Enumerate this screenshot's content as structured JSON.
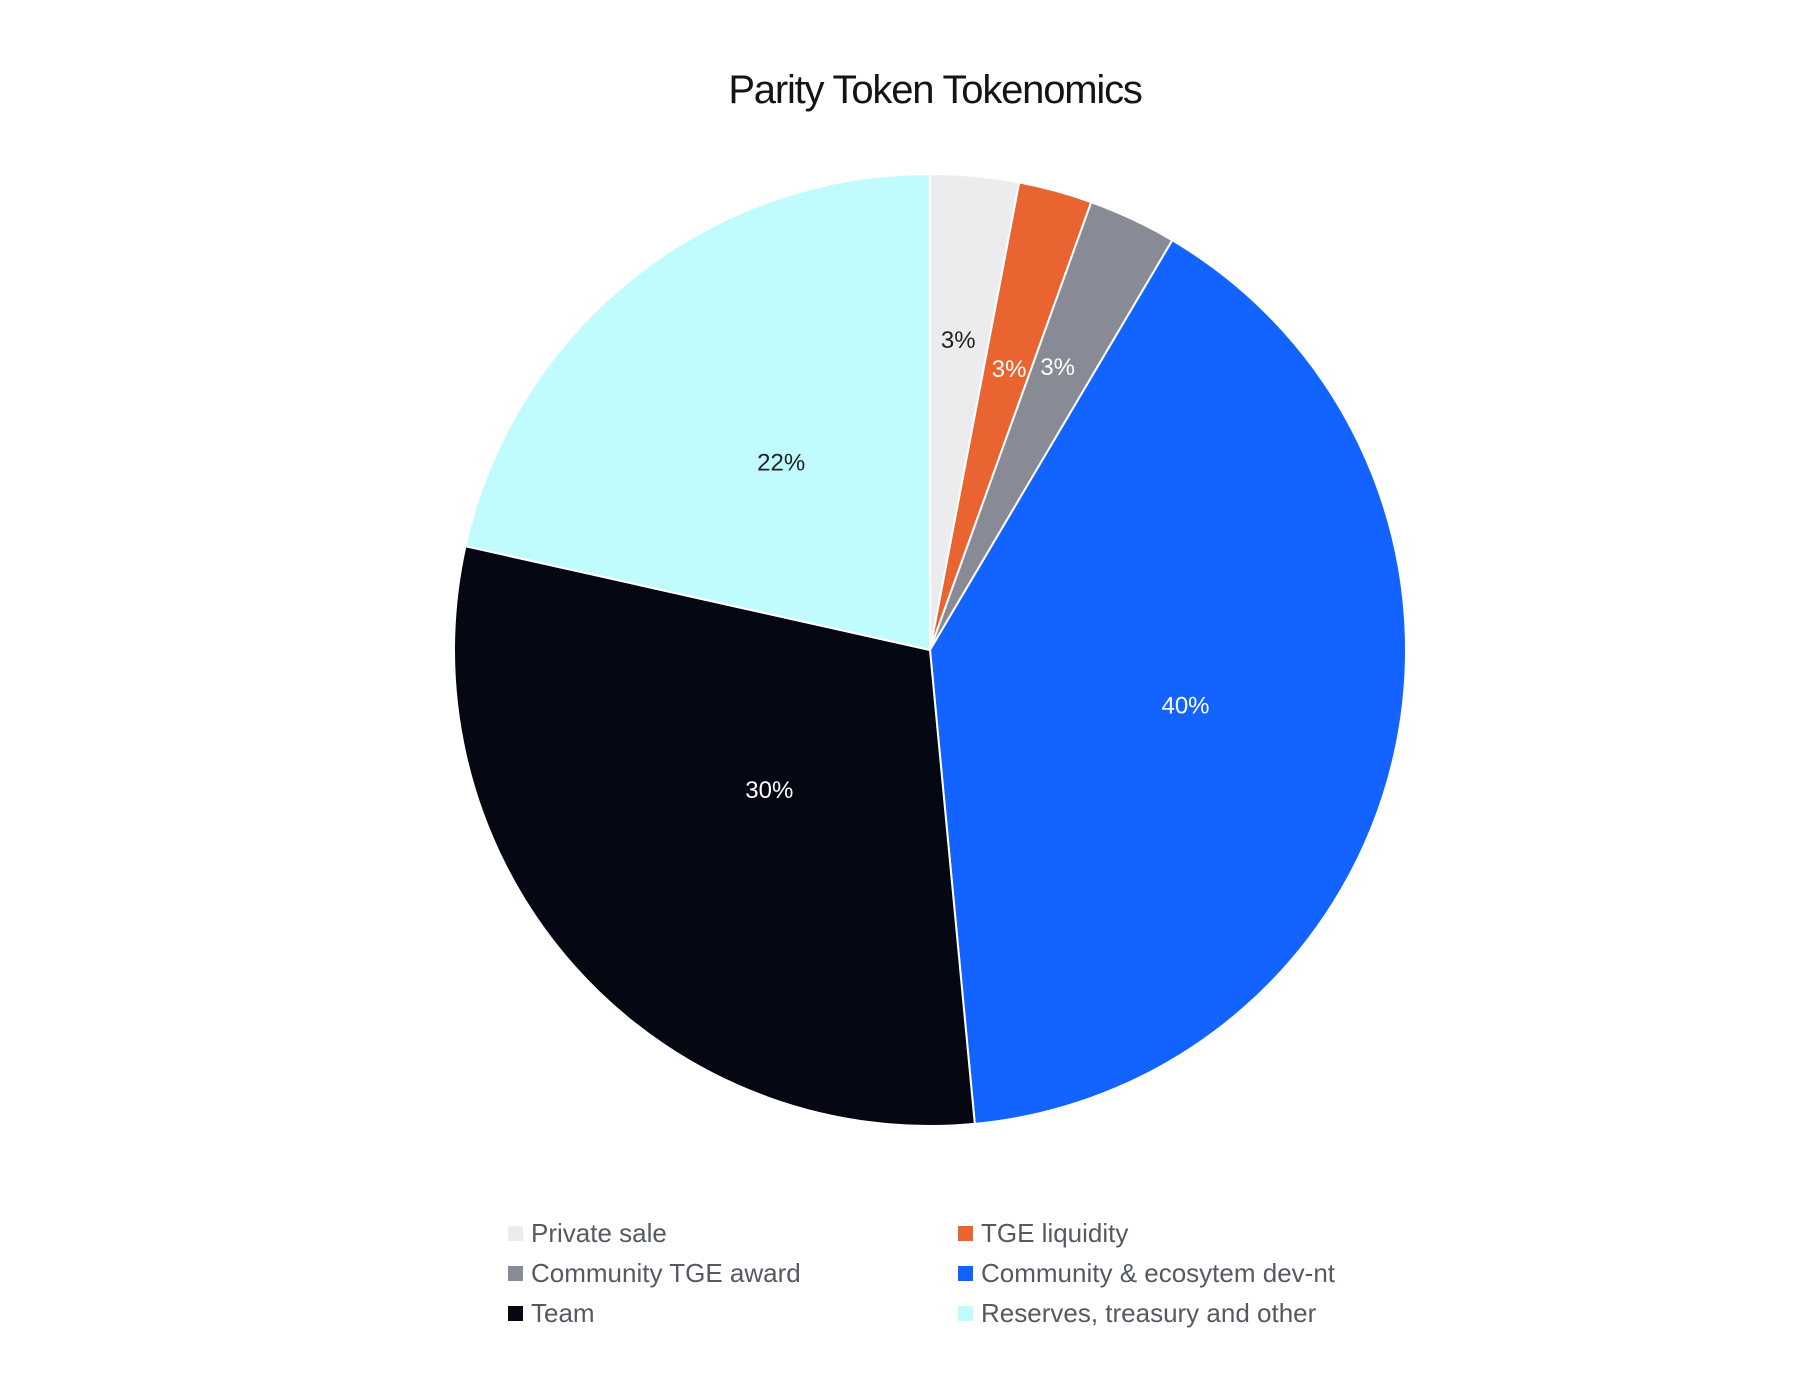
{
  "chart_data": {
    "type": "pie",
    "title": "Parity Token Tokenomics",
    "start_angle_deg": 0,
    "direction": "clockwise",
    "legend_position": "bottom",
    "slices": [
      {
        "label": "Private sale",
        "value": 3,
        "display": "3%",
        "color": "#ececef",
        "label_color": "#222222"
      },
      {
        "label": "TGE liquidity",
        "value": 2.5,
        "display": "3%",
        "color": "#ea6432",
        "label_color": "#ffffff"
      },
      {
        "label": "Community TGE award",
        "value": 3,
        "display": "3%",
        "color": "#888b95",
        "label_color": "#ffffff"
      },
      {
        "label": "Community & ecosytem dev-nt",
        "value": 40,
        "display": "40%",
        "color": "#1263ff",
        "label_color": "#ffffff"
      },
      {
        "label": "Team",
        "value": 30,
        "display": "30%",
        "color": "#050713",
        "label_color": "#ffffff"
      },
      {
        "label": "Reserves, treasury and other",
        "value": 21.5,
        "display": "22%",
        "color": "#c0fbfd",
        "label_color": "#222222"
      }
    ]
  }
}
